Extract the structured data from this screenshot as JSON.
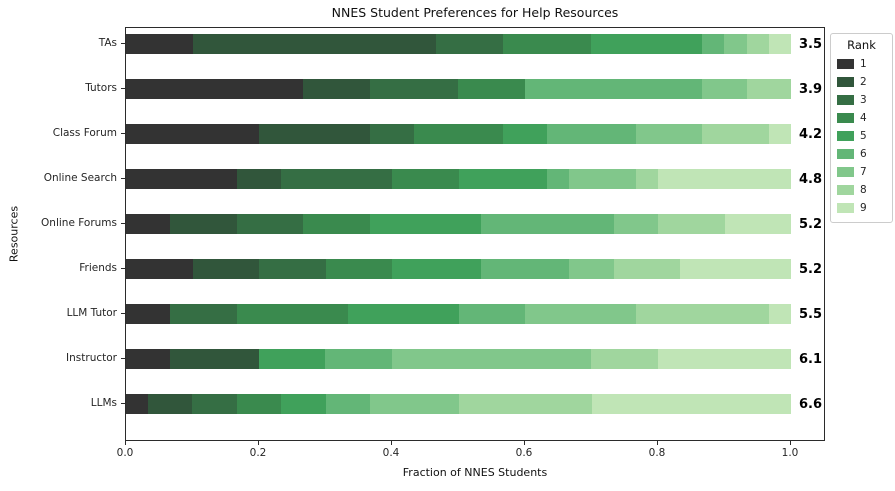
{
  "title": "NNES Student Preferences for Help Resources",
  "xlabel": "Fraction of NNES Students",
  "ylabel": "Resources",
  "legend": {
    "title": "Rank",
    "entries": [
      "1",
      "2",
      "3",
      "4",
      "5",
      "6",
      "7",
      "8",
      "9"
    ]
  },
  "x_ticks": {
    "labels": [
      "0.0",
      "0.2",
      "0.4",
      "0.6",
      "0.8",
      "1.0"
    ],
    "values": [
      0.0,
      0.2,
      0.4,
      0.6,
      0.8,
      1.0
    ]
  },
  "chart_data": {
    "type": "bar",
    "orientation": "horizontal",
    "stacked": true,
    "title": "NNES Student Preferences for Help Resources",
    "xlabel": "Fraction of NNES Students",
    "ylabel": "Resources",
    "xlim": [
      0,
      1.05
    ],
    "grid": false,
    "legend_position": "outside-right",
    "categories": [
      "TAs",
      "Tutors",
      "Class Forum",
      "Online Search",
      "Online Forums",
      "Friends",
      "LLM Tutor",
      "Instructor",
      "LLMs"
    ],
    "mean_rank_labels": [
      "3.5",
      "3.9",
      "4.2",
      "4.8",
      "5.2",
      "5.2",
      "5.5",
      "6.1",
      "6.6"
    ],
    "series": [
      {
        "name": "1",
        "color": "#333333",
        "values": [
          0.1,
          0.2667,
          0.2,
          0.1667,
          0.0667,
          0.1,
          0.0667,
          0.0667,
          0.0333
        ]
      },
      {
        "name": "2",
        "color": "#31563b",
        "values": [
          0.3667,
          0.1,
          0.1667,
          0.0667,
          0.1,
          0.1,
          0.0,
          0.1333,
          0.0667
        ]
      },
      {
        "name": "3",
        "color": "#356e44",
        "values": [
          0.1,
          0.1333,
          0.0667,
          0.1667,
          0.1,
          0.1,
          0.1,
          0.0,
          0.0667
        ]
      },
      {
        "name": "4",
        "color": "#3a8a4e",
        "values": [
          0.1333,
          0.1,
          0.1333,
          0.1,
          0.1,
          0.1,
          0.1667,
          0.0,
          0.0667
        ]
      },
      {
        "name": "5",
        "color": "#40a15b",
        "values": [
          0.1667,
          0.0,
          0.0667,
          0.1333,
          0.1667,
          0.1333,
          0.1667,
          0.1,
          0.0667
        ]
      },
      {
        "name": "6",
        "color": "#63b677",
        "values": [
          0.0333,
          0.2667,
          0.1333,
          0.0333,
          0.2,
          0.1333,
          0.1,
          0.1,
          0.0667
        ]
      },
      {
        "name": "7",
        "color": "#81c78b",
        "values": [
          0.0333,
          0.0667,
          0.1,
          0.1,
          0.0667,
          0.0667,
          0.1667,
          0.3,
          0.1333
        ]
      },
      {
        "name": "8",
        "color": "#a0d69e",
        "values": [
          0.0333,
          0.0667,
          0.1,
          0.0333,
          0.1,
          0.1,
          0.2,
          0.1,
          0.2
        ]
      },
      {
        "name": "9",
        "color": "#c0e5b6",
        "values": [
          0.0333,
          0.0,
          0.0333,
          0.2,
          0.1,
          0.1667,
          0.0333,
          0.2,
          0.3
        ]
      }
    ]
  }
}
